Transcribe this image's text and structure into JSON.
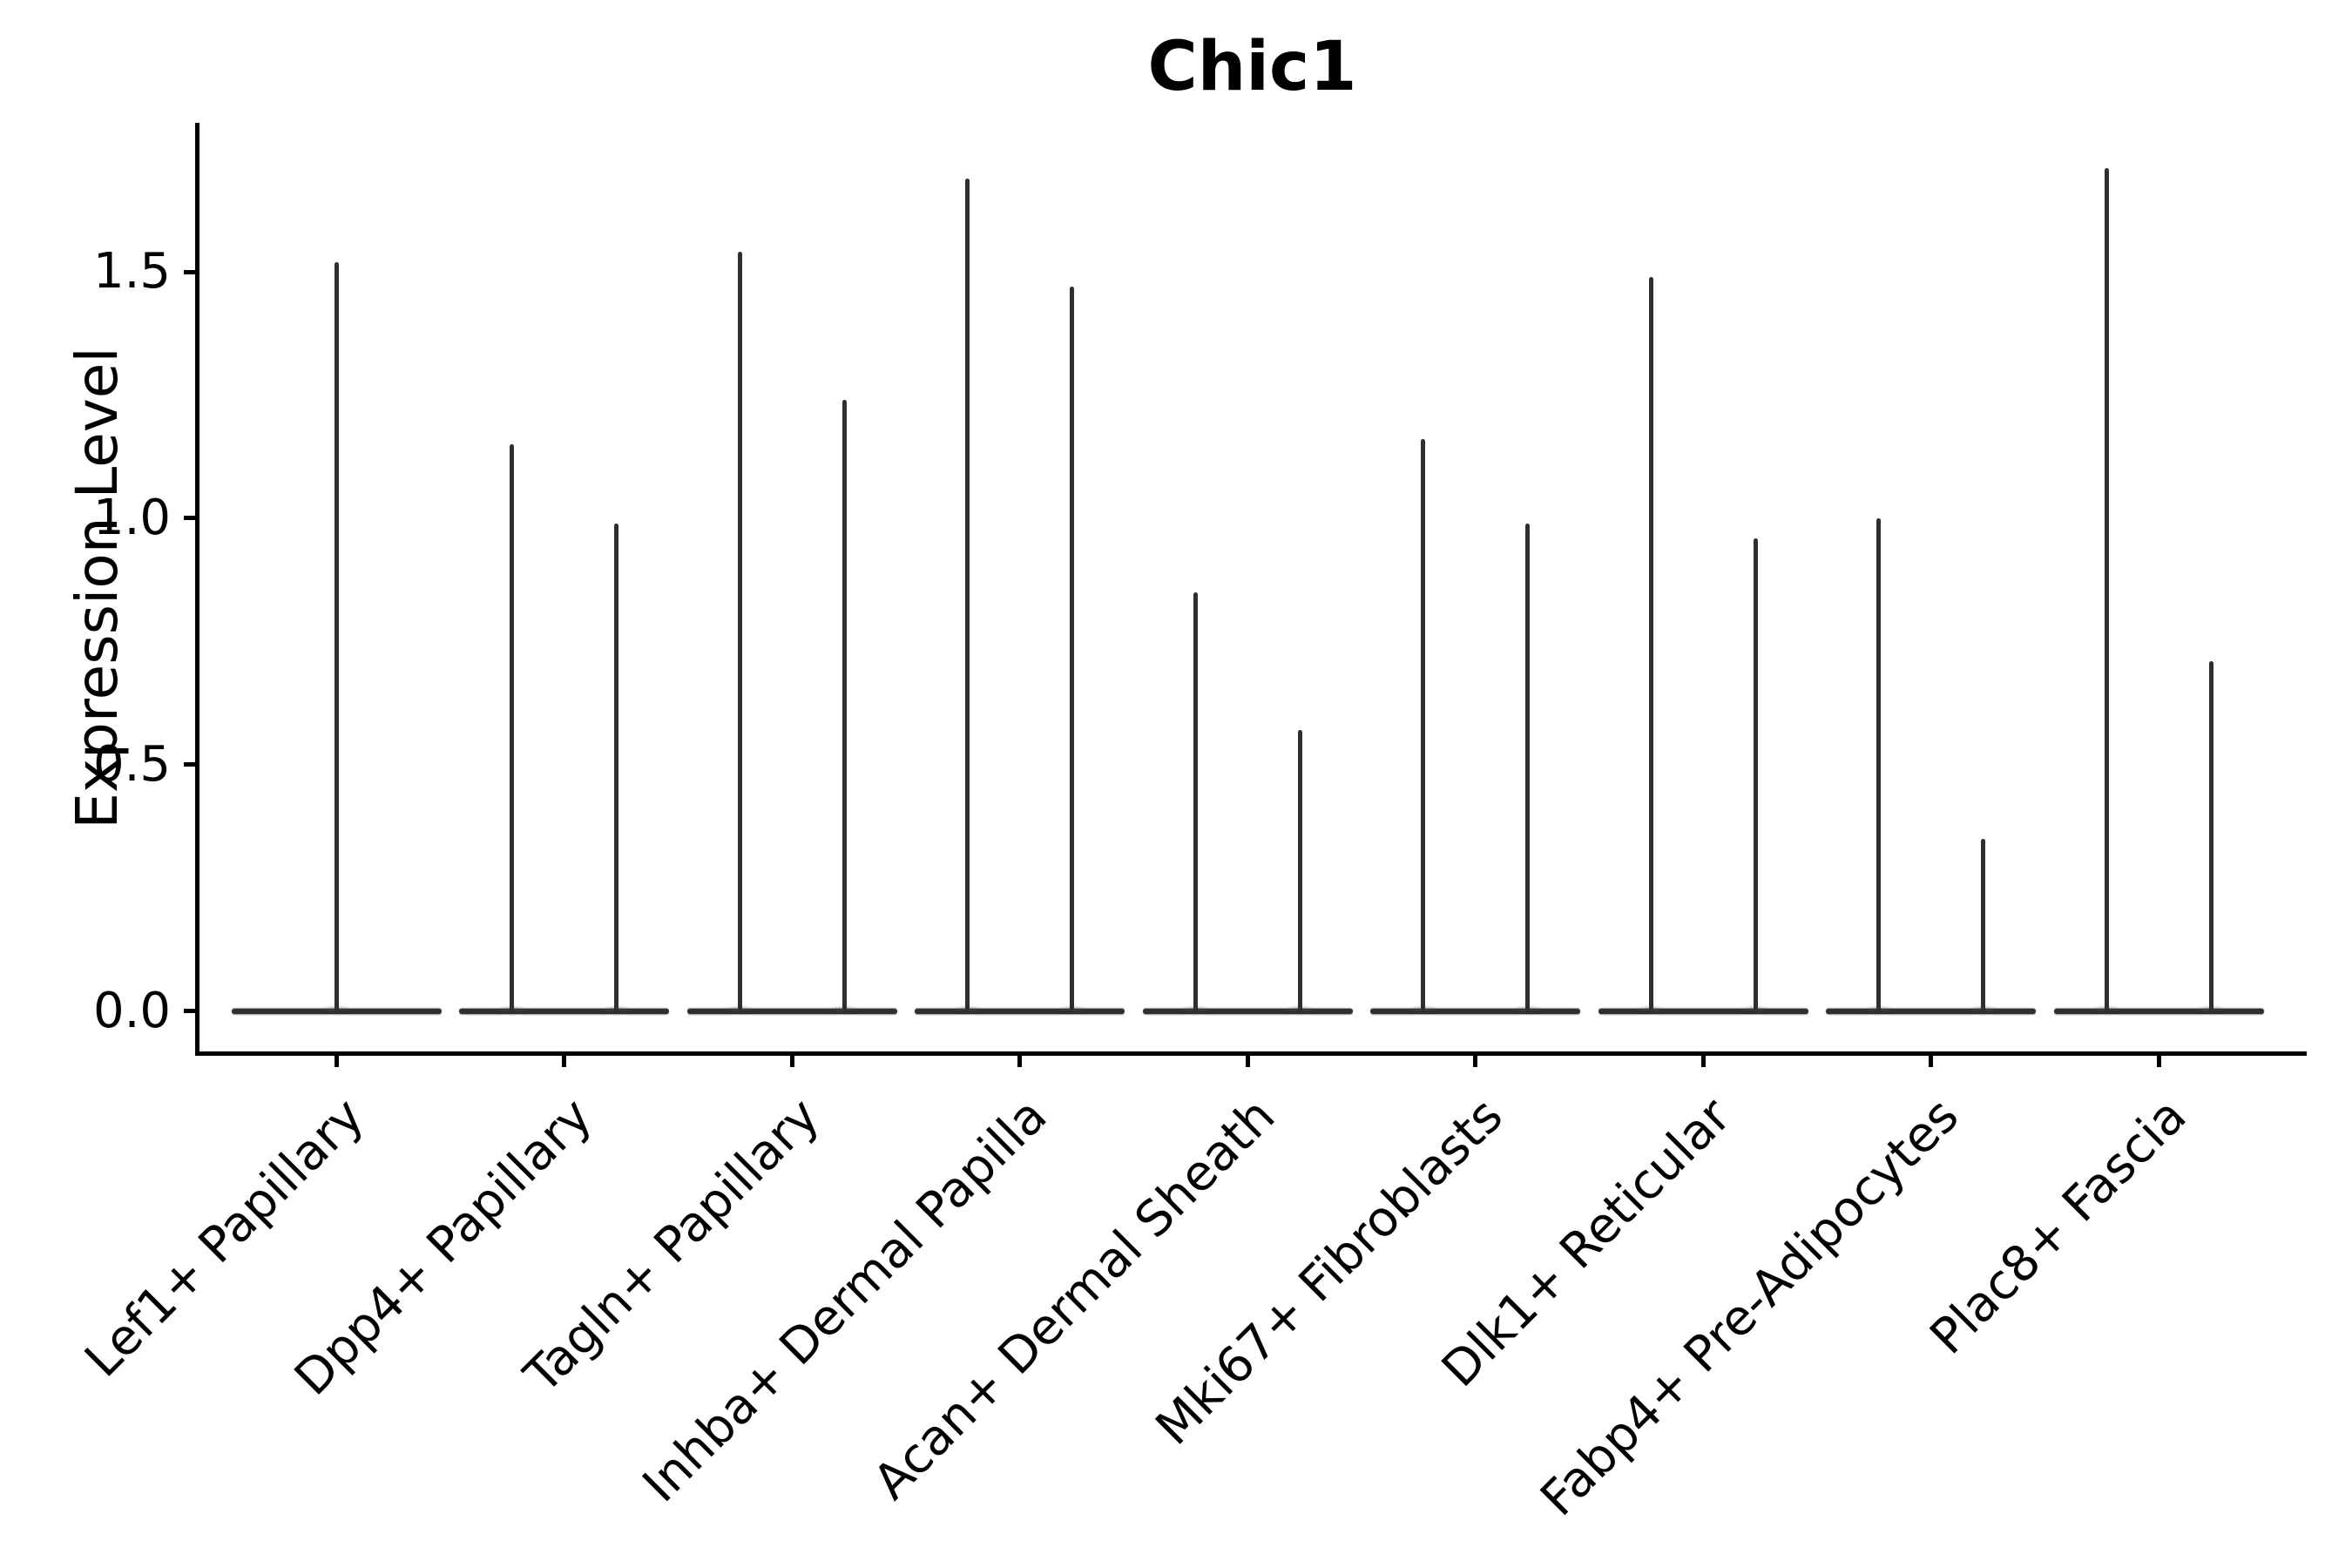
{
  "figure": {
    "title": "Chic1",
    "ylabel": "Expression Level",
    "background_color": "#ffffff",
    "axis_color": "#000000",
    "violin_color": "#2f2f2f"
  },
  "chart_data": {
    "type": "violin",
    "title": "Chic1",
    "xlabel": "",
    "ylabel": "Expression Level",
    "grid": false,
    "legend_position": "none",
    "ylim": [
      -0.09,
      1.8
    ],
    "yticks": [
      {
        "value": 0.0,
        "label": "0.0"
      },
      {
        "value": 0.5,
        "label": "0.5"
      },
      {
        "value": 1.0,
        "label": "1.0"
      },
      {
        "value": 1.5,
        "label": "1.5"
      }
    ],
    "x_tick_label_rotation_deg": 45,
    "categories": [
      "Lef1+ Papillary",
      "Dpp4+ Papillary",
      "Tagln+ Papillary",
      "Inhba+ Dermal Papilla",
      "Acan+ Dermal Sheath",
      "Mki67+ Fibroblasts",
      "Dlk1+ Reticular",
      "Fabp4+ Pre-Adipocytes",
      "Plac8+ Fascia"
    ],
    "violins": [
      {
        "category": "Lef1+ Papillary",
        "baseline_value": 0.0,
        "spike_maxima": [
          1.52
        ]
      },
      {
        "category": "Dpp4+ Papillary",
        "baseline_value": 0.0,
        "spike_maxima": [
          1.15,
          0.99
        ]
      },
      {
        "category": "Tagln+ Papillary",
        "baseline_value": 0.0,
        "spike_maxima": [
          1.54,
          1.24
        ]
      },
      {
        "category": "Inhba+ Dermal Papilla",
        "baseline_value": 0.0,
        "spike_maxima": [
          1.69,
          1.47
        ]
      },
      {
        "category": "Acan+ Dermal Sheath",
        "baseline_value": 0.0,
        "spike_maxima": [
          0.85,
          0.57
        ]
      },
      {
        "category": "Mki67+ Fibroblasts",
        "baseline_value": 0.0,
        "spike_maxima": [
          1.16,
          0.99
        ]
      },
      {
        "category": "Dlk1+ Reticular",
        "baseline_value": 0.0,
        "spike_maxima": [
          1.49,
          0.96
        ]
      },
      {
        "category": "Fabp4+ Pre-Adipocytes",
        "baseline_value": 0.0,
        "spike_maxima": [
          1.0,
          0.35
        ]
      },
      {
        "category": "Plac8+ Fascia",
        "baseline_value": 0.0,
        "spike_maxima": [
          1.71,
          0.71
        ]
      }
    ]
  }
}
